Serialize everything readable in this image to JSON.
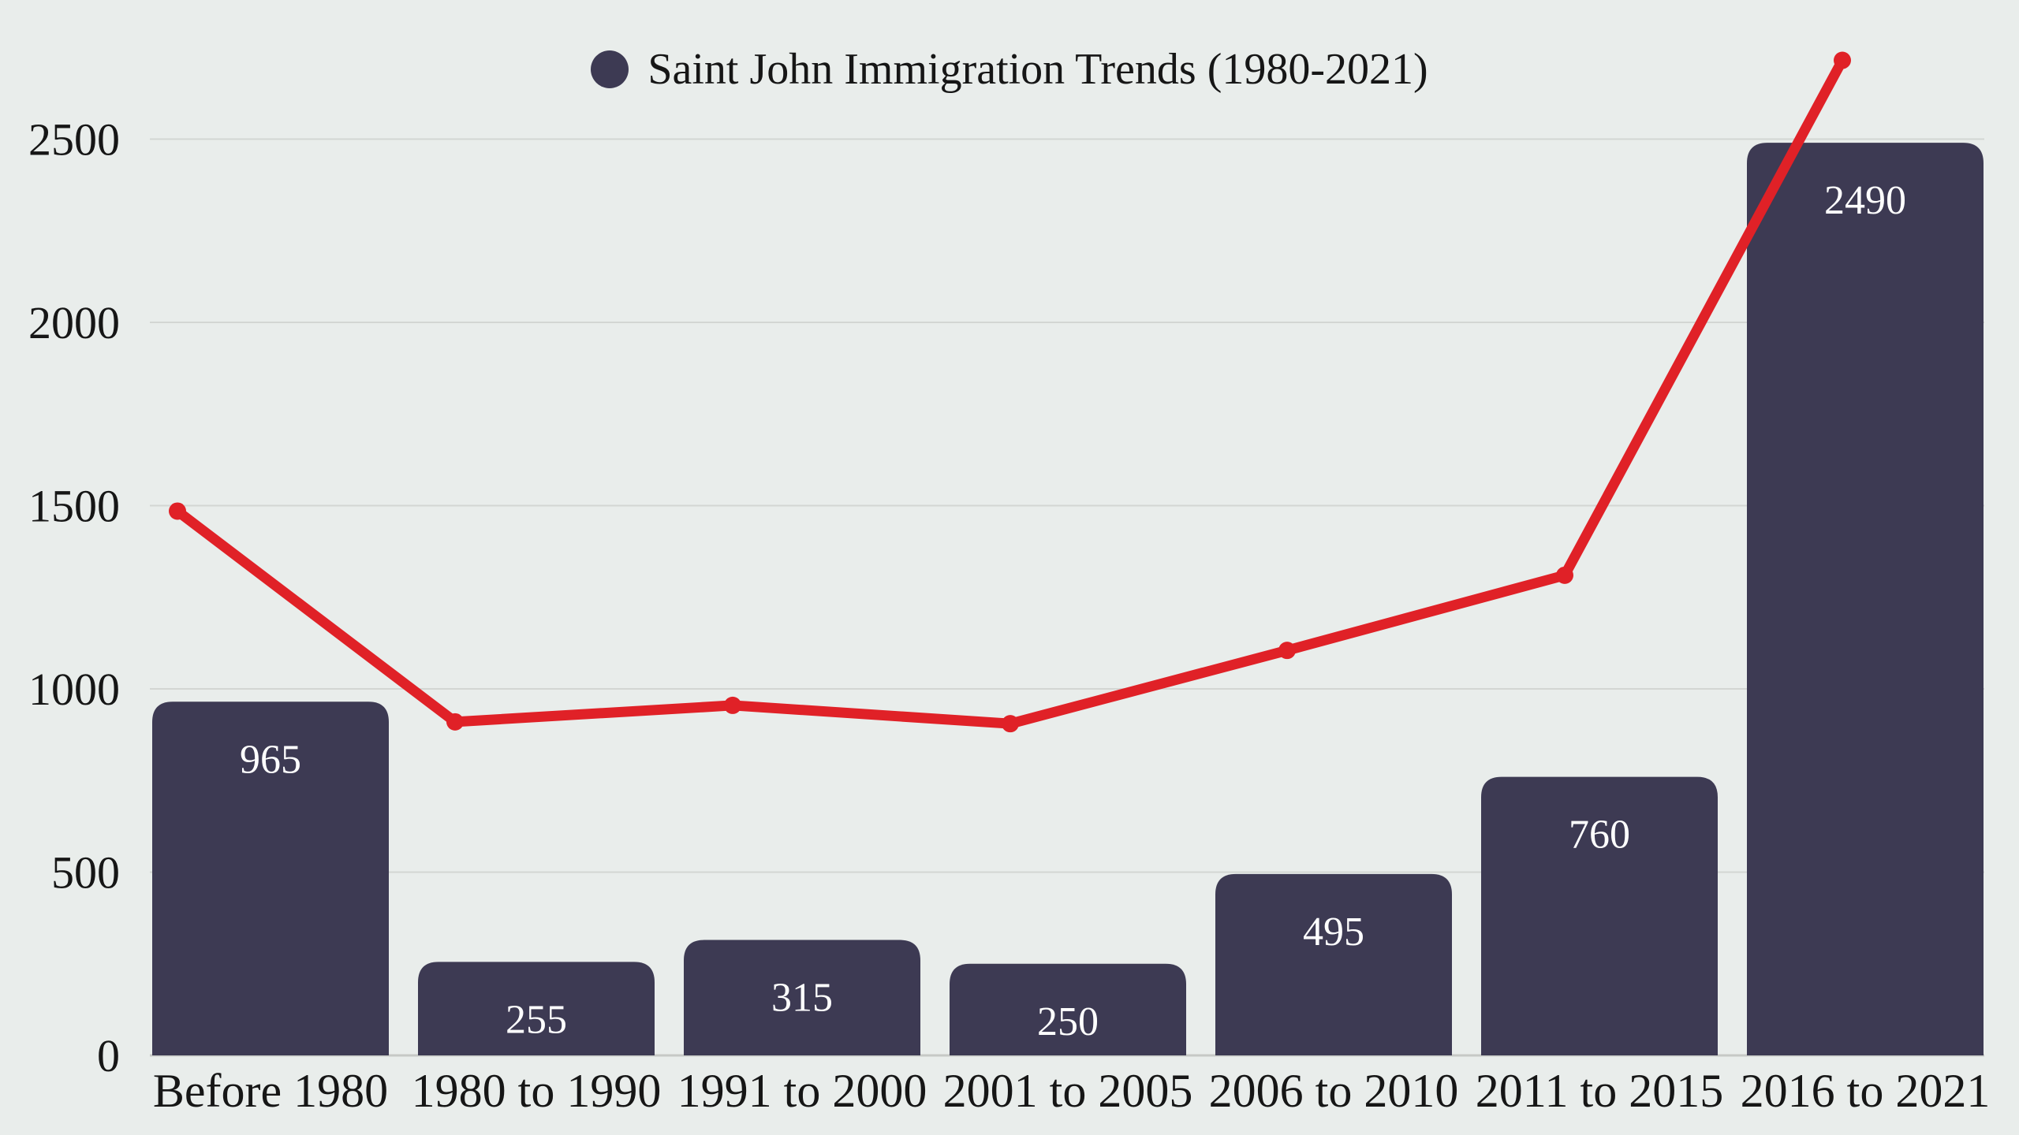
{
  "chart_data": {
    "type": "bar+line",
    "title": "Saint John Immigration Trends (1980-2021)",
    "legend": {
      "position": "top-center",
      "marker": "circle",
      "label": "Saint John Immigration Trends (1980-2021)"
    },
    "categories": [
      "Before 1980",
      "1980 to 1990",
      "1991 to 2000",
      "2001 to 2005",
      "2006 to 2010",
      "2011 to 2015",
      "2016 to 2021"
    ],
    "series": [
      {
        "name": "immigration-by-period",
        "type": "bar",
        "values": [
          965,
          255,
          315,
          250,
          495,
          760,
          2490
        ],
        "data_labels": [
          "965",
          "255",
          "315",
          "250",
          "495",
          "760",
          "2490"
        ],
        "color": "#3d3a53",
        "label_color": "#ffffff"
      },
      {
        "name": "trend-line",
        "type": "line",
        "values": [
          1485,
          910,
          955,
          905,
          1105,
          1310,
          2715
        ],
        "color": "#e02127"
      }
    ],
    "yaxis": {
      "ticks": [
        0,
        500,
        1000,
        1500,
        2000,
        2500
      ],
      "range": [
        0,
        2830
      ]
    },
    "grid": "horizontal",
    "colors": {
      "background": "#e9edeb",
      "bar": "#3d3a53",
      "bar_label": "#ffffff",
      "line": "#e02127",
      "grid": "#d3d6d3",
      "baseline": "#c6c9c6",
      "text": "#161616"
    }
  }
}
